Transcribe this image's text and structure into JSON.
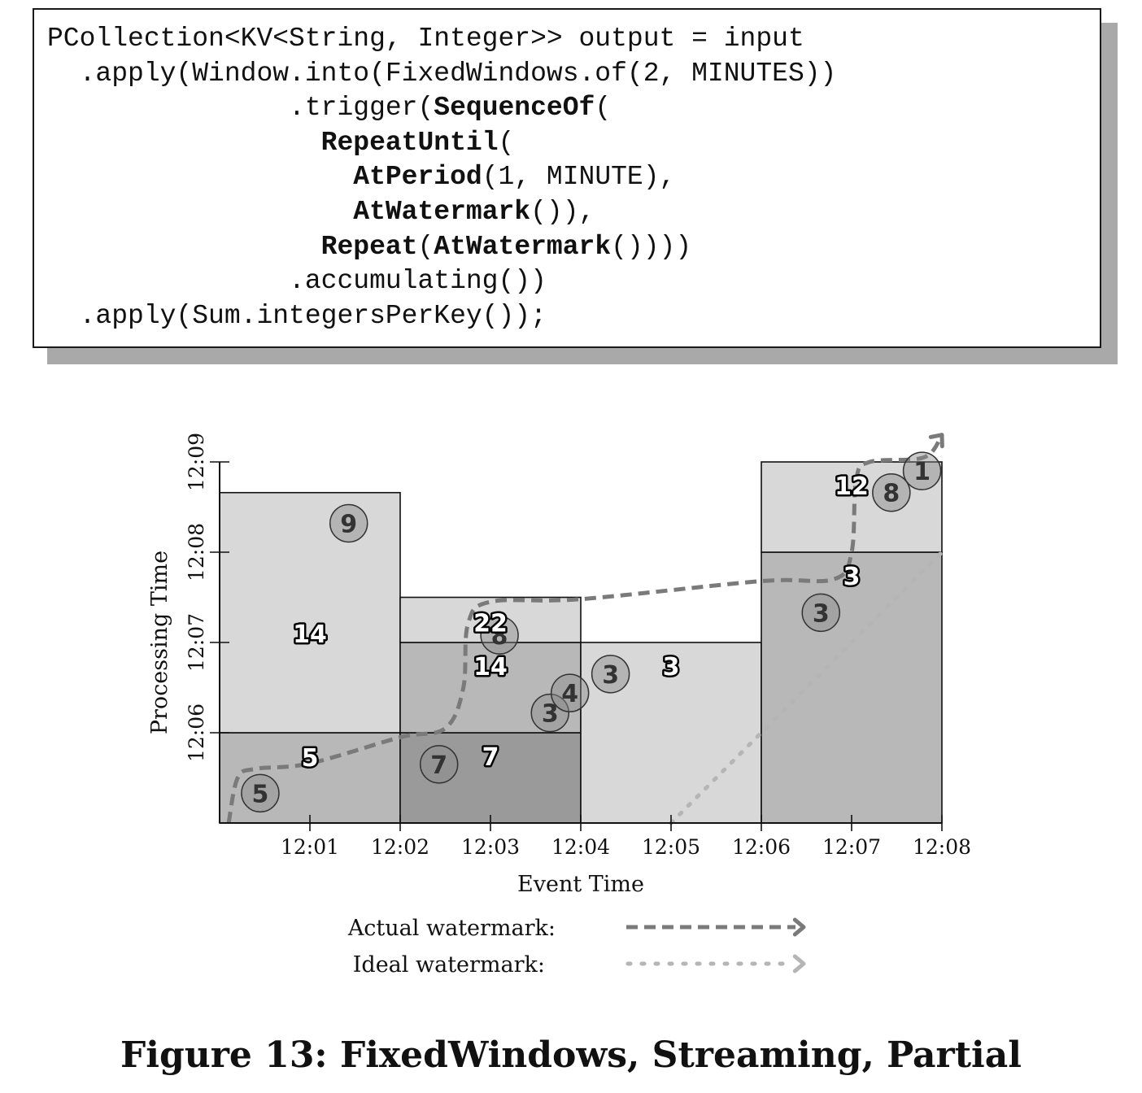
{
  "code": {
    "lines": [
      [
        {
          "t": "PCollection<KV<String, Integer>> output = input",
          "b": false
        }
      ],
      [
        {
          "t": "  .apply(Window.into(FixedWindows.of(2, MINUTES))",
          "b": false
        }
      ],
      [
        {
          "t": "               .trigger(",
          "b": false
        },
        {
          "t": "SequenceOf",
          "b": true
        },
        {
          "t": "(",
          "b": false
        }
      ],
      [
        {
          "t": "                 ",
          "b": false
        },
        {
          "t": "RepeatUntil",
          "b": true
        },
        {
          "t": "(",
          "b": false
        }
      ],
      [
        {
          "t": "                   ",
          "b": false
        },
        {
          "t": "AtPeriod",
          "b": true
        },
        {
          "t": "(1, MINUTE),",
          "b": false
        }
      ],
      [
        {
          "t": "                   ",
          "b": false
        },
        {
          "t": "AtWatermark",
          "b": true
        },
        {
          "t": "()),",
          "b": false
        }
      ],
      [
        {
          "t": "                 ",
          "b": false
        },
        {
          "t": "Repeat",
          "b": true
        },
        {
          "t": "(",
          "b": false
        },
        {
          "t": "AtWatermark",
          "b": true
        },
        {
          "t": "())))",
          "b": false
        }
      ],
      [
        {
          "t": "               .accumulating())",
          "b": false
        }
      ],
      [
        {
          "t": "  .apply(Sum.integersPerKey());",
          "b": false
        }
      ]
    ]
  },
  "chart_data": {
    "type": "diagram",
    "xlabel": "Event Time",
    "ylabel": "Processing Time",
    "x_ticks": [
      "12:01",
      "12:02",
      "12:03",
      "12:04",
      "12:05",
      "12:06",
      "12:07",
      "12:08"
    ],
    "y_ticks": [
      "12:06",
      "12:07",
      "12:08",
      "12:09"
    ],
    "x_range_minutes": [
      12.0,
      12.08
    ],
    "panes": [
      {
        "x0": 0,
        "x1": 2,
        "y0": 0,
        "y1": 1,
        "shade": "#b8b8b8"
      },
      {
        "x0": 0,
        "x1": 2,
        "y0": 1,
        "y1": 3.66,
        "shade": "#d8d8d8"
      },
      {
        "x0": 2,
        "x1": 4,
        "y0": 0,
        "y1": 1,
        "shade": "#9a9a9a"
      },
      {
        "x0": 2,
        "x1": 4,
        "y0": 1,
        "y1": 2,
        "shade": "#b8b8b8"
      },
      {
        "x0": 2,
        "x1": 4,
        "y0": 2,
        "y1": 2.5,
        "shade": "#d8d8d8"
      },
      {
        "x0": 4,
        "x1": 6,
        "y0": 0,
        "y1": 2,
        "shade": "#d8d8d8"
      },
      {
        "x0": 6,
        "x1": 8,
        "y0": 0,
        "y1": 3,
        "shade": "#b8b8b8"
      },
      {
        "x0": 6,
        "x1": 8,
        "y0": 3,
        "y1": 4,
        "shade": "#d8d8d8"
      }
    ],
    "pane_results": [
      {
        "x": 1.0,
        "y": 2.1,
        "value": "14"
      },
      {
        "x": 1.0,
        "y": 0.73,
        "value": "5"
      },
      {
        "x": 3.0,
        "y": 2.22,
        "value": "22"
      },
      {
        "x": 3.0,
        "y": 1.74,
        "value": "14"
      },
      {
        "x": 3.0,
        "y": 0.74,
        "value": "7"
      },
      {
        "x": 5.0,
        "y": 1.74,
        "value": "3"
      },
      {
        "x": 7.0,
        "y": 2.74,
        "value": "3"
      },
      {
        "x": 7.0,
        "y": 3.74,
        "value": "12"
      }
    ],
    "data_points": [
      {
        "x": 0.45,
        "y": 0.33,
        "value": "5"
      },
      {
        "x": 1.43,
        "y": 3.32,
        "value": "9"
      },
      {
        "x": 2.43,
        "y": 0.65,
        "value": "7"
      },
      {
        "x": 3.1,
        "y": 2.08,
        "value": "8"
      },
      {
        "x": 3.66,
        "y": 1.22,
        "value": "3"
      },
      {
        "x": 3.88,
        "y": 1.44,
        "value": "4"
      },
      {
        "x": 4.33,
        "y": 1.65,
        "value": "3"
      },
      {
        "x": 6.66,
        "y": 2.33,
        "value": "3"
      },
      {
        "x": 7.44,
        "y": 3.66,
        "value": "8"
      },
      {
        "x": 7.78,
        "y": 3.9,
        "value": "1"
      }
    ],
    "actual_watermark": [
      [
        0.1,
        0
      ],
      [
        0.2,
        0.5
      ],
      [
        0.4,
        0.6
      ],
      [
        1.0,
        0.66
      ],
      [
        2.0,
        0.95
      ],
      [
        2.5,
        1.05
      ],
      [
        2.7,
        1.5
      ],
      [
        2.75,
        2.2
      ],
      [
        3.0,
        2.45
      ],
      [
        4.0,
        2.48
      ],
      [
        6.0,
        2.68
      ],
      [
        6.8,
        2.7
      ],
      [
        7.0,
        3.0
      ],
      [
        7.05,
        3.8
      ],
      [
        7.2,
        4.0
      ],
      [
        7.8,
        4.05
      ],
      [
        8.0,
        4.3
      ]
    ],
    "ideal_watermark": [
      [
        5.0,
        0
      ],
      [
        8.0,
        3.0
      ]
    ],
    "legend": [
      {
        "label": "Actual watermark:",
        "style": "dashed",
        "color": "#7a7a7a"
      },
      {
        "label": "Ideal watermark:",
        "style": "dotted",
        "color": "#b5b5b5"
      }
    ]
  },
  "caption": "Figure 13: FixedWindows, Streaming, Partial"
}
